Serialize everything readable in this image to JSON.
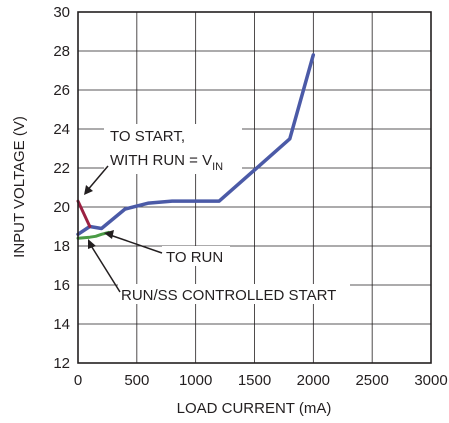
{
  "chart_data": {
    "type": "line",
    "xlabel": "LOAD CURRENT (mA)",
    "ylabel": "INPUT VOLTAGE (V)",
    "xlim": [
      0,
      3000
    ],
    "ylim": [
      12,
      30
    ],
    "x_ticks": [
      0,
      500,
      1000,
      1500,
      2000,
      2500,
      3000
    ],
    "y_ticks": [
      12,
      14,
      16,
      18,
      20,
      22,
      24,
      26,
      28,
      30
    ],
    "grid": true,
    "series": [
      {
        "color": "#4b5aa7",
        "x": [
          0,
          100,
          200,
          400,
          600,
          800,
          1000,
          1200,
          1500,
          1800,
          2000
        ],
        "y": [
          18.6,
          19.0,
          18.9,
          19.9,
          20.2,
          20.3,
          20.3,
          20.3,
          21.9,
          23.5,
          27.8
        ]
      },
      {
        "color": "#9b2142",
        "x": [
          0,
          100
        ],
        "y": [
          20.3,
          19.0
        ]
      },
      {
        "color": "#4a9b45",
        "x": [
          0,
          100,
          150,
          200,
          260
        ],
        "y": [
          18.4,
          18.45,
          18.5,
          18.6,
          18.7
        ]
      }
    ],
    "annotations": [
      {
        "line1": "TO START,",
        "line2_main": "WITH RUN = V",
        "line2_sub": "IN"
      },
      {
        "text": "TO RUN"
      },
      {
        "text": "RUN/SS CONTROLLED START"
      }
    ]
  }
}
